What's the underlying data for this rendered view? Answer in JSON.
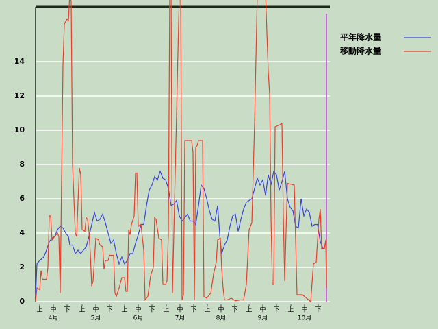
{
  "chart_data": {
    "type": "line",
    "xlim": [
      0,
      213
    ],
    "ylim": [
      0,
      17.2
    ],
    "yticks": [
      0,
      2,
      4,
      6,
      8,
      10,
      12,
      14
    ],
    "grid": true,
    "xticks": [
      {
        "value": 3,
        "label": "上"
      },
      {
        "value": 13,
        "label": "中"
      },
      {
        "value": 23,
        "label": "下"
      },
      {
        "value": 34,
        "label": "上"
      },
      {
        "value": 44,
        "label": "中"
      },
      {
        "value": 54,
        "label": "下"
      },
      {
        "value": 65,
        "label": "上"
      },
      {
        "value": 75,
        "label": "中"
      },
      {
        "value": 85,
        "label": "下"
      },
      {
        "value": 95.5,
        "label": "上"
      },
      {
        "value": 105.5,
        "label": "中"
      },
      {
        "value": 115.5,
        "label": "下"
      },
      {
        "value": 125.5,
        "label": "上"
      },
      {
        "value": 135.5,
        "label": "中"
      },
      {
        "value": 145.5,
        "label": "下"
      },
      {
        "value": 156,
        "label": "上"
      },
      {
        "value": 166,
        "label": "中"
      },
      {
        "value": 176,
        "label": "下"
      },
      {
        "value": 186.5,
        "label": "上"
      },
      {
        "value": 196.5,
        "label": "中"
      },
      {
        "value": 206.5,
        "label": "下"
      }
    ],
    "months": [
      {
        "value": 13,
        "label": "4月"
      },
      {
        "value": 44,
        "label": "5月"
      },
      {
        "value": 75,
        "label": "6月"
      },
      {
        "value": 105.5,
        "label": "7月"
      },
      {
        "value": 135.5,
        "label": "8月"
      },
      {
        "value": 166,
        "label": "9月"
      },
      {
        "value": 196.5,
        "label": "10月"
      }
    ],
    "legend": "top-right",
    "series": [
      {
        "name": "平年降水量",
        "color": "#3a44e0",
        "x": [
          0,
          1,
          3,
          6,
          8,
          10,
          12,
          14,
          16,
          18,
          20,
          22,
          24,
          25,
          27,
          29,
          31,
          33,
          35,
          37,
          39,
          41,
          43,
          45,
          47,
          49,
          51,
          53,
          55,
          57,
          59,
          61,
          63,
          65,
          67,
          69,
          71,
          73,
          75,
          77,
          79,
          81,
          83,
          85,
          87,
          89,
          91,
          93,
          95,
          97,
          99,
          101,
          103,
          105,
          107,
          109,
          111,
          113,
          115,
          117,
          119,
          121,
          123,
          125,
          127,
          129,
          131,
          133,
          135,
          136,
          138,
          140,
          142,
          144,
          146,
          148,
          150,
          152,
          154,
          156,
          158,
          160,
          162,
          164,
          166,
          168,
          170,
          172,
          174,
          176,
          178,
          180,
          182,
          184,
          186,
          188,
          190,
          192,
          194,
          196,
          198,
          200,
          202,
          204,
          206,
          208,
          210
        ],
        "values": [
          0.3,
          2.2,
          2.4,
          2.6,
          3.0,
          3.5,
          3.7,
          3.8,
          4.2,
          4.4,
          4.3,
          4.0,
          3.8,
          3.3,
          3.3,
          2.8,
          3.0,
          2.8,
          3.0,
          3.2,
          3.8,
          4.5,
          5.2,
          4.7,
          4.8,
          5.1,
          4.6,
          4.0,
          3.4,
          3.6,
          2.8,
          2.2,
          2.6,
          2.2,
          2.4,
          2.8,
          2.8,
          3.4,
          3.9,
          4.5,
          4.5,
          5.6,
          6.5,
          6.8,
          7.3,
          7.1,
          7.6,
          7.2,
          7.1,
          6.6,
          5.6,
          5.7,
          5.9,
          5.0,
          4.7,
          4.9,
          5.1,
          4.7,
          4.7,
          4.5,
          5.6,
          6.8,
          6.6,
          6.0,
          5.3,
          4.8,
          4.7,
          5.6,
          3.4,
          2.8,
          3.3,
          3.6,
          4.4,
          5.0,
          5.1,
          4.1,
          4.8,
          5.4,
          5.8,
          5.9,
          6.0,
          6.6,
          7.2,
          6.8,
          7.1,
          6.2,
          7.4,
          6.8,
          7.6,
          7.4,
          6.5,
          7.0,
          7.6,
          6.0,
          5.5,
          5.3,
          4.4,
          4.3,
          6.0,
          5.0,
          5.4,
          5.2,
          4.4,
          4.5,
          4.5,
          3.5,
          3.1
        ]
      },
      {
        "name": "移動降水量",
        "color": "#e8402c",
        "x": [
          0,
          1,
          3,
          4,
          5,
          8,
          9,
          10,
          11,
          12,
          14,
          16,
          17,
          18,
          20,
          21,
          23,
          24,
          25,
          26,
          27,
          29,
          30,
          32,
          33,
          34,
          36,
          37,
          38,
          39,
          40,
          41,
          42,
          44,
          46,
          47,
          49,
          50,
          51,
          53,
          54,
          57,
          58,
          59,
          61,
          63,
          65,
          66,
          67,
          68,
          69,
          70,
          72,
          73,
          74,
          75,
          77,
          79,
          80,
          82,
          84,
          86,
          87,
          88,
          90,
          92,
          93,
          95,
          96,
          97,
          98,
          99,
          100,
          105,
          106,
          107,
          108,
          109,
          114,
          115,
          116,
          117,
          118,
          119,
          122,
          123,
          125,
          127,
          128,
          130,
          132,
          133,
          135,
          136,
          137,
          138,
          140,
          143,
          146,
          149,
          152,
          154,
          156,
          158,
          160,
          162,
          163,
          165,
          168,
          170,
          171,
          172,
          173,
          174,
          175,
          178,
          180,
          181,
          182,
          184,
          189,
          191,
          195,
          201,
          203,
          205,
          207,
          208,
          209,
          211,
          212,
          212.5
        ],
        "values": [
          0,
          0.8,
          0.7,
          1.8,
          1.3,
          1.3,
          2.0,
          5.0,
          5.0,
          3.6,
          3.8,
          4.0,
          3.8,
          0.5,
          13.8,
          16.2,
          16.5,
          16.4,
          18,
          17.5,
          8,
          4.0,
          3.8,
          7.8,
          7.4,
          4.2,
          4.1,
          4.9,
          4.8,
          4.1,
          2.8,
          0.9,
          1.2,
          3.7,
          3.6,
          3.3,
          3.2,
          1.9,
          2.4,
          2.4,
          2.7,
          2.7,
          0.5,
          0.3,
          0.8,
          1.4,
          1.4,
          0.6,
          0.6,
          4.2,
          3.9,
          4.5,
          5.0,
          7.5,
          7.5,
          4.4,
          4.5,
          3.0,
          0.1,
          0.3,
          1.5,
          2.0,
          4.9,
          4.8,
          3.7,
          3.6,
          1.0,
          1.0,
          1.2,
          4,
          18,
          18,
          0.5,
          18,
          18,
          0.1,
          0.4,
          9.4,
          9.4,
          8.7,
          0.1,
          9.0,
          9.1,
          9.4,
          9.4,
          0.3,
          0.2,
          0.4,
          0.5,
          1.6,
          2.3,
          3.6,
          3.7,
          1.9,
          0.8,
          0.1,
          0.1,
          0.2,
          0.05,
          0.1,
          0.1,
          1.0,
          4.2,
          4.6,
          10.4,
          18,
          18,
          18,
          18,
          13.4,
          12.1,
          5,
          1.0,
          1.0,
          10.2,
          10.3,
          10.4,
          5,
          1.2,
          6.9,
          6.8,
          0.4,
          0.4,
          0.0,
          2.2,
          2.3,
          4.8,
          5.4,
          3.1,
          3.1,
          3.6,
          0.8
        ]
      }
    ]
  }
}
